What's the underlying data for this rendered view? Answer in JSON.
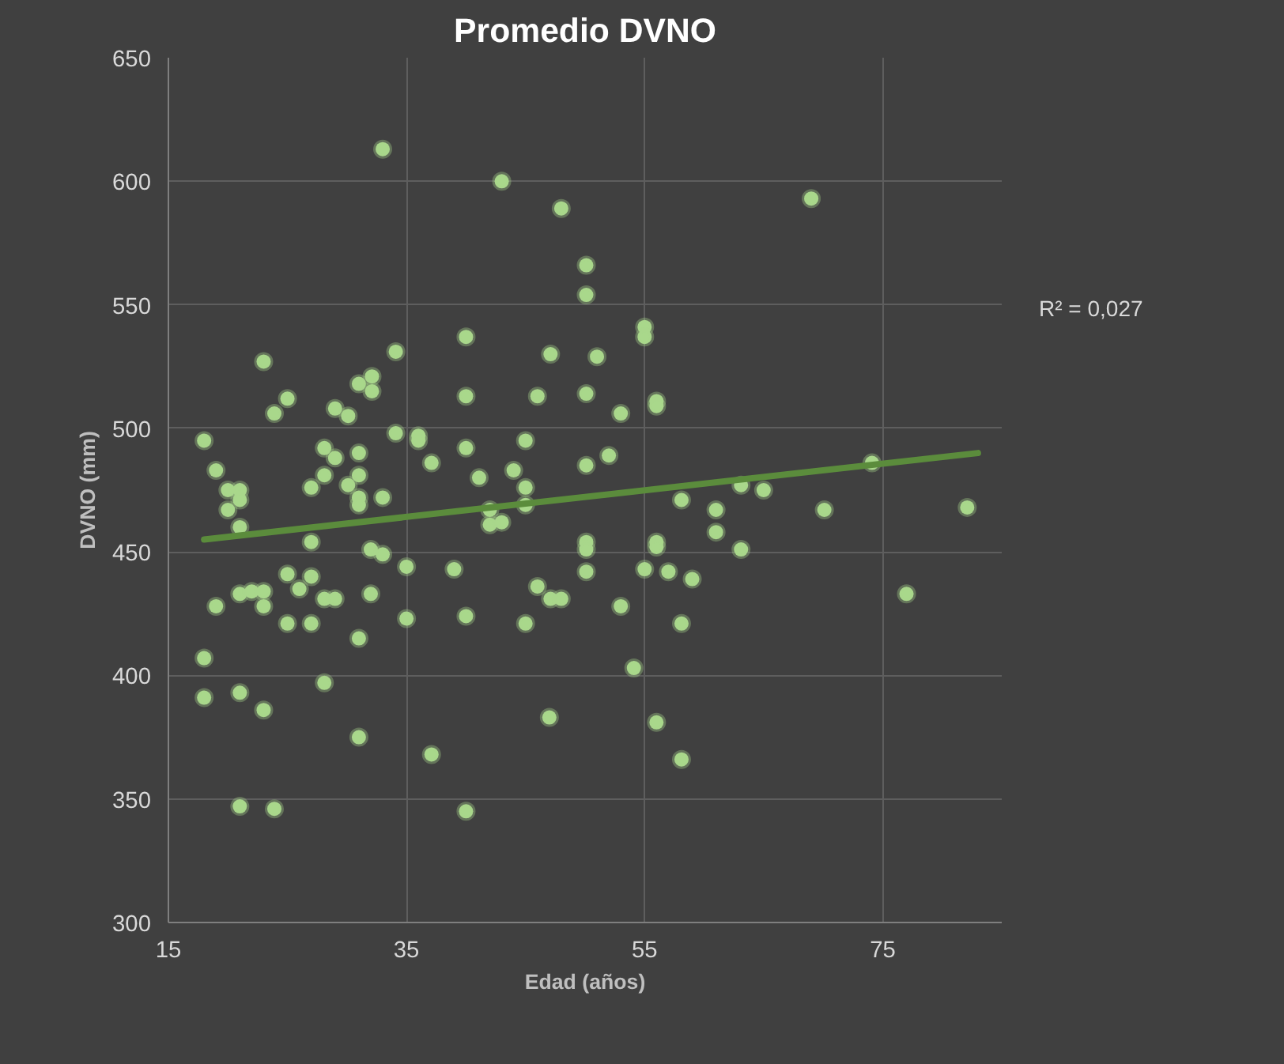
{
  "chart_data": {
    "type": "scatter",
    "title": "Promedio DVNO",
    "xlabel": "Edad (años)",
    "ylabel": "DVNO (mm)",
    "annotations": [
      "R² = 0,027"
    ],
    "xlim": [
      15,
      85
    ],
    "xticks": [
      15,
      35,
      55,
      75
    ],
    "ylim": [
      300,
      650
    ],
    "yticks": [
      300,
      350,
      400,
      450,
      500,
      550,
      600,
      650
    ],
    "grid": true,
    "series": [
      {
        "marker": "circle",
        "color": "#a9d88b",
        "x": [
          33.0,
          34.1,
          23.0,
          31.0,
          32.1,
          32.1,
          25.0,
          23.9,
          29.0,
          30.1,
          18.0,
          34.1,
          36.0,
          36.0,
          37.1,
          19.0,
          28.1,
          29.0,
          31.0,
          31.0,
          28.1,
          27.0,
          30.1,
          20.0,
          21.0,
          21.0,
          20.0,
          31.0,
          31.0,
          33.0,
          21.0,
          43.0,
          48.0,
          50.1,
          50.1,
          40.0,
          55.0,
          55.0,
          47.1,
          51.0,
          40.0,
          46.0,
          50.1,
          56.0,
          56.0,
          53.0,
          40.0,
          45.0,
          52.0,
          50.1,
          41.1,
          44.0,
          45.0,
          45.0,
          42.0,
          42.0,
          43.0,
          58.1,
          61.0,
          61.0,
          63.1,
          65.0,
          70.1,
          74.1,
          82.1,
          69.0,
          27.0,
          32.0,
          33.0,
          35.0,
          39.0,
          19.0,
          21.0,
          22.0,
          23.0,
          23.0,
          25.0,
          26.0,
          27.0,
          25.0,
          27.0,
          28.1,
          29.0,
          32.0,
          31.0,
          35.0,
          18.0,
          18.0,
          21.0,
          23.0,
          28.1,
          31.0,
          37.1,
          21.0,
          23.9,
          50.1,
          50.1,
          56.0,
          56.0,
          63.1,
          46.0,
          47.1,
          48.0,
          50.1,
          55.0,
          57.0,
          59.0,
          40.0,
          45.0,
          53.0,
          58.1,
          54.1,
          47.0,
          56.0,
          58.1,
          40.0,
          77.0
        ],
        "values": [
          613,
          531,
          527,
          518,
          521,
          515,
          512,
          506,
          508,
          505,
          495,
          498,
          497,
          495,
          486,
          483,
          492,
          488,
          490,
          481,
          481,
          476,
          477,
          475,
          475,
          471,
          467,
          472,
          469,
          472,
          460,
          600,
          589,
          566,
          554,
          537,
          541,
          537,
          530,
          529,
          513,
          513,
          514,
          511,
          509,
          506,
          492,
          495,
          489,
          485,
          480,
          483,
          476,
          469,
          467,
          461,
          462,
          471,
          467,
          458,
          477,
          475,
          467,
          486,
          468,
          593,
          454,
          451,
          449,
          444,
          443,
          428,
          433,
          434,
          434,
          428,
          441,
          435,
          440,
          421,
          421,
          431,
          431,
          433,
          415,
          423,
          407,
          391,
          393,
          386,
          397,
          375,
          368,
          347,
          346,
          454,
          451,
          454,
          452,
          451,
          436,
          431,
          431,
          442,
          443,
          442,
          439,
          424,
          421,
          428,
          421,
          403,
          383,
          381,
          366,
          345,
          433
        ]
      },
      {
        "type": "line",
        "color": "#5b8c3c",
        "x": [
          18,
          83
        ],
        "values": [
          455,
          490
        ]
      }
    ]
  }
}
